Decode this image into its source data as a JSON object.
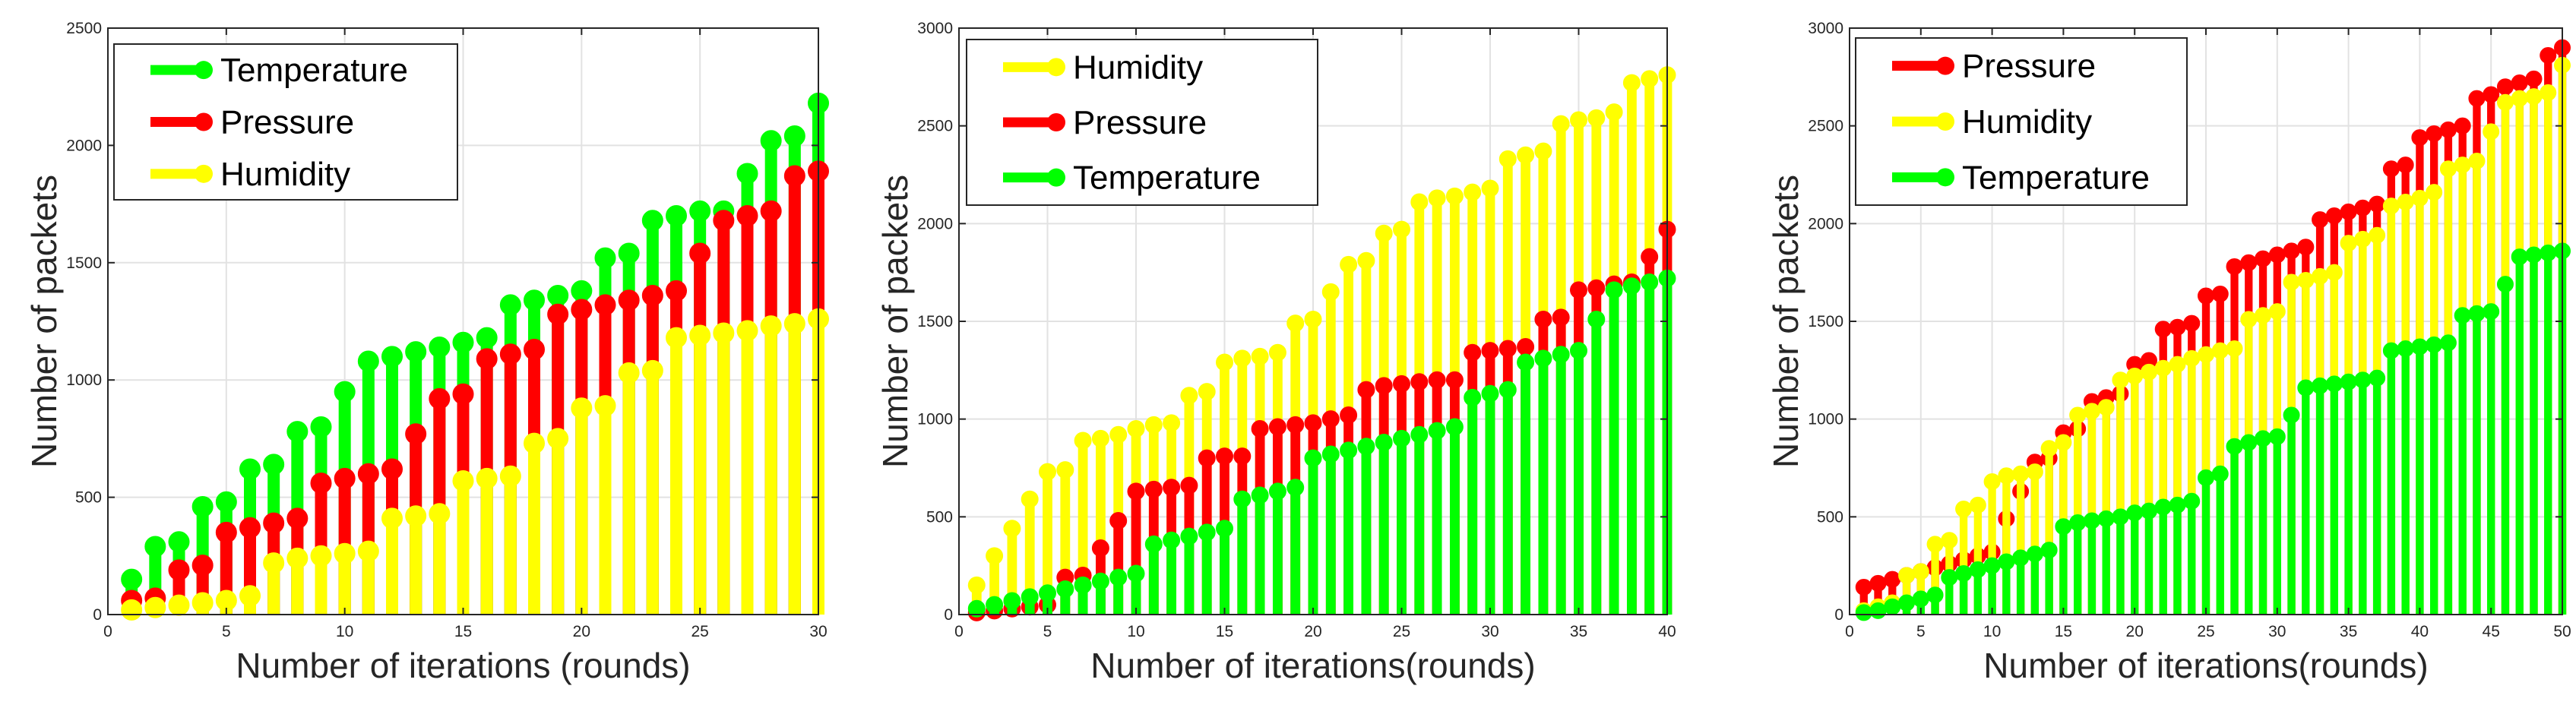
{
  "chart_data": [
    {
      "type": "stem",
      "xlabel": "Number of iterations (rounds)",
      "ylabel": "Number of packets",
      "xlim": [
        0,
        30
      ],
      "ylim": [
        0,
        2500
      ],
      "xticks": [
        0,
        5,
        10,
        15,
        20,
        25,
        30
      ],
      "yticks": [
        0,
        500,
        1000,
        1500,
        2000,
        2500
      ],
      "grid": true,
      "legend_position": "top-left",
      "x": [
        1,
        2,
        3,
        4,
        5,
        6,
        7,
        8,
        9,
        10,
        11,
        12,
        13,
        14,
        15,
        16,
        17,
        18,
        19,
        20,
        21,
        22,
        23,
        24,
        25,
        26,
        27,
        28,
        29,
        30
      ],
      "series": [
        {
          "name": "Temperature",
          "color": "#00ff00",
          "values": [
            150,
            290,
            310,
            460,
            480,
            620,
            640,
            780,
            800,
            950,
            1080,
            1100,
            1120,
            1140,
            1160,
            1180,
            1320,
            1340,
            1360,
            1380,
            1520,
            1540,
            1680,
            1700,
            1720,
            1720,
            1880,
            2020,
            2040,
            2180
          ]
        },
        {
          "name": "Pressure",
          "color": "#ff0000",
          "values": [
            60,
            70,
            190,
            210,
            350,
            370,
            390,
            410,
            560,
            580,
            600,
            620,
            770,
            920,
            940,
            1090,
            1110,
            1130,
            1280,
            1300,
            1320,
            1340,
            1360,
            1380,
            1540,
            1680,
            1700,
            1720,
            1870,
            1890
          ]
        },
        {
          "name": "Humidity",
          "color": "#ffff00",
          "values": [
            20,
            30,
            40,
            50,
            60,
            80,
            220,
            240,
            250,
            260,
            270,
            410,
            420,
            430,
            570,
            580,
            590,
            730,
            750,
            880,
            890,
            1030,
            1040,
            1180,
            1190,
            1200,
            1210,
            1230,
            1240,
            1260
          ]
        }
      ]
    },
    {
      "type": "stem",
      "xlabel": "Number of iterations(rounds)",
      "ylabel": "Number of packets",
      "xlim": [
        0,
        40
      ],
      "ylim": [
        0,
        3000
      ],
      "xticks": [
        0,
        5,
        10,
        15,
        20,
        25,
        30,
        35,
        40
      ],
      "yticks": [
        0,
        500,
        1000,
        1500,
        2000,
        2500,
        3000
      ],
      "grid": true,
      "legend_position": "top-left",
      "x": [
        1,
        2,
        3,
        4,
        5,
        6,
        7,
        8,
        9,
        10,
        11,
        12,
        13,
        14,
        15,
        16,
        17,
        18,
        19,
        20,
        21,
        22,
        23,
        24,
        25,
        26,
        27,
        28,
        29,
        30,
        31,
        32,
        33,
        34,
        35,
        36,
        37,
        38,
        39,
        40
      ],
      "series": [
        {
          "name": "Humidity",
          "color": "#ffff00",
          "values": [
            150,
            300,
            440,
            590,
            730,
            740,
            890,
            900,
            920,
            950,
            970,
            980,
            1120,
            1140,
            1290,
            1310,
            1320,
            1340,
            1490,
            1510,
            1650,
            1790,
            1810,
            1950,
            1970,
            2110,
            2130,
            2140,
            2160,
            2180,
            2330,
            2350,
            2370,
            2510,
            2530,
            2540,
            2570,
            2720,
            2740,
            2760
          ]
        },
        {
          "name": "Pressure",
          "color": "#ff0000",
          "values": [
            10,
            20,
            30,
            40,
            50,
            190,
            200,
            340,
            480,
            630,
            640,
            650,
            660,
            800,
            810,
            810,
            950,
            960,
            970,
            980,
            1000,
            1020,
            1150,
            1170,
            1180,
            1190,
            1200,
            1200,
            1340,
            1350,
            1360,
            1370,
            1510,
            1520,
            1660,
            1670,
            1690,
            1700,
            1830,
            1970
          ]
        },
        {
          "name": "Temperature",
          "color": "#00ff00",
          "values": [
            30,
            50,
            70,
            90,
            110,
            130,
            150,
            170,
            190,
            210,
            360,
            380,
            400,
            420,
            440,
            590,
            610,
            630,
            650,
            800,
            820,
            840,
            860,
            880,
            900,
            920,
            940,
            960,
            1110,
            1130,
            1150,
            1290,
            1310,
            1330,
            1350,
            1510,
            1660,
            1680,
            1700,
            1720
          ]
        }
      ]
    },
    {
      "type": "stem",
      "xlabel": "Number of iterations(rounds)",
      "ylabel": "Number of packets",
      "xlim": [
        0,
        50
      ],
      "ylim": [
        0,
        3000
      ],
      "xticks": [
        0,
        5,
        10,
        15,
        20,
        25,
        30,
        35,
        40,
        45,
        50
      ],
      "yticks": [
        0,
        500,
        1000,
        1500,
        2000,
        2500,
        3000
      ],
      "grid": true,
      "legend_position": "top-left",
      "x": [
        1,
        2,
        3,
        4,
        5,
        6,
        7,
        8,
        9,
        10,
        11,
        12,
        13,
        14,
        15,
        16,
        17,
        18,
        19,
        20,
        21,
        22,
        23,
        24,
        25,
        26,
        27,
        28,
        29,
        30,
        31,
        32,
        33,
        34,
        35,
        36,
        37,
        38,
        39,
        40,
        41,
        42,
        43,
        44,
        45,
        46,
        47,
        48,
        49,
        50
      ],
      "series": [
        {
          "name": "Pressure",
          "color": "#ff0000",
          "values": [
            140,
            160,
            180,
            200,
            220,
            240,
            260,
            280,
            300,
            320,
            490,
            630,
            780,
            800,
            930,
            950,
            1090,
            1110,
            1130,
            1280,
            1300,
            1460,
            1470,
            1490,
            1630,
            1640,
            1780,
            1800,
            1820,
            1840,
            1860,
            1880,
            2020,
            2040,
            2060,
            2080,
            2100,
            2280,
            2300,
            2440,
            2460,
            2480,
            2500,
            2640,
            2660,
            2700,
            2720,
            2740,
            2860,
            2900
          ]
        },
        {
          "name": "Humidity",
          "color": "#ffff00",
          "values": [
            20,
            40,
            60,
            200,
            220,
            360,
            380,
            540,
            560,
            680,
            710,
            720,
            730,
            850,
            880,
            1020,
            1040,
            1060,
            1200,
            1220,
            1240,
            1260,
            1280,
            1310,
            1330,
            1350,
            1360,
            1510,
            1530,
            1550,
            1700,
            1710,
            1730,
            1750,
            1900,
            1920,
            1940,
            2090,
            2110,
            2130,
            2160,
            2280,
            2300,
            2320,
            2470,
            2620,
            2640,
            2650,
            2670,
            2810
          ]
        },
        {
          "name": "Temperature",
          "color": "#00ff00",
          "values": [
            10,
            20,
            40,
            60,
            80,
            100,
            190,
            210,
            230,
            250,
            270,
            290,
            310,
            330,
            450,
            470,
            480,
            490,
            500,
            520,
            530,
            550,
            560,
            580,
            700,
            720,
            860,
            880,
            900,
            910,
            1020,
            1160,
            1170,
            1180,
            1190,
            1200,
            1210,
            1350,
            1360,
            1370,
            1380,
            1390,
            1530,
            1540,
            1550,
            1690,
            1830,
            1840,
            1850,
            1860
          ]
        }
      ]
    }
  ]
}
